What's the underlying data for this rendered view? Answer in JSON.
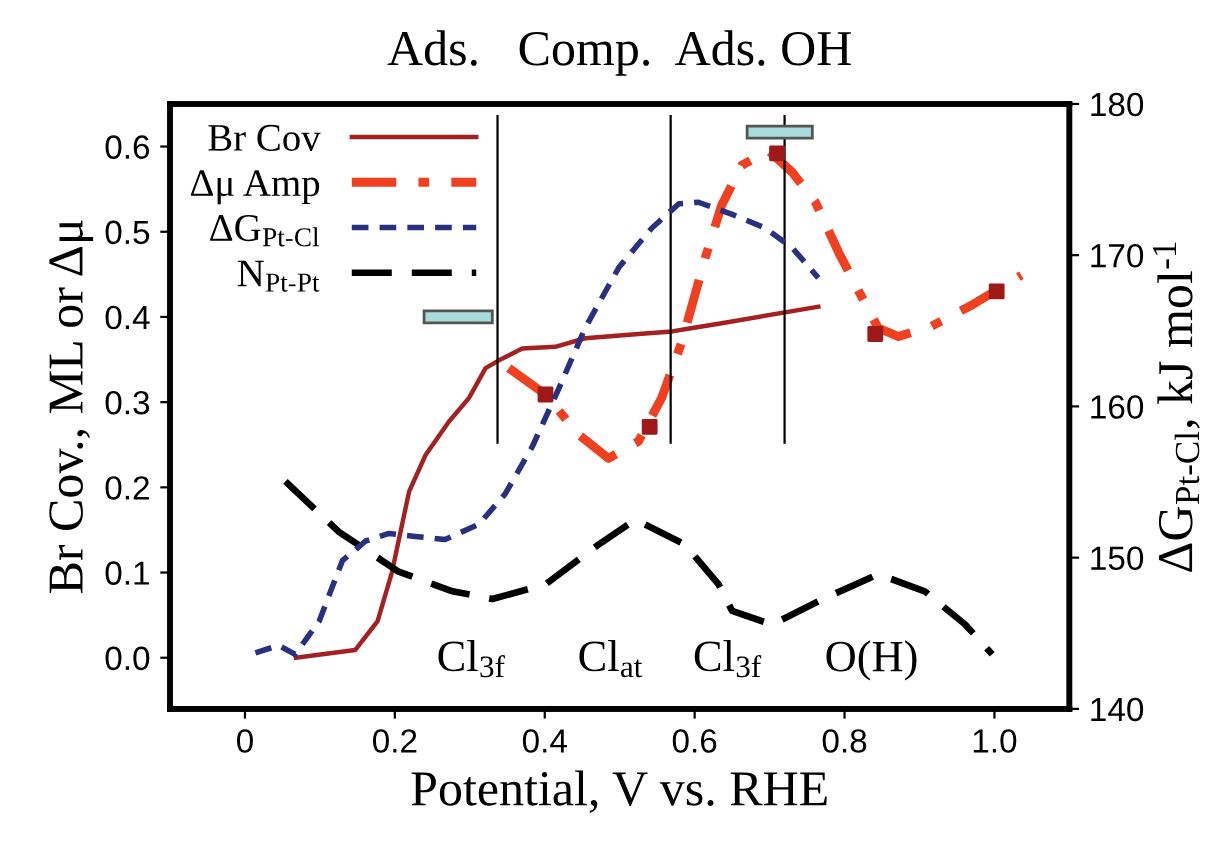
{
  "chart_data": {
    "type": "line",
    "title": "Ads.   Comp.  Ads. OH",
    "xlabel": "Potential, V vs. RHE",
    "ylabel": "Br Cov., ML or Δμ",
    "y2label": "ΔG$_{Pt-Cl}$, kJ mol$^{-1}$",
    "xlim": [
      -0.1,
      1.1
    ],
    "xticks": [
      0,
      0.2,
      0.4,
      0.6,
      0.8,
      {
        "value": 1,
        "label": "1.0"
      }
    ],
    "ylim": [
      -0.06,
      0.65
    ],
    "yticks": [
      {
        "value": 0,
        "label": "0.0"
      },
      0.1,
      0.2,
      0.3,
      0.4,
      0.5,
      0.6
    ],
    "y2lim": [
      140,
      180
    ],
    "y2ticks": [
      140,
      150,
      160,
      170,
      180
    ],
    "grid": false,
    "legend": "top left",
    "series": [
      {
        "name": "Br Cov",
        "line_style": "solid",
        "color": "#a52020",
        "x": [
          0.068,
          0.147,
          0.177,
          0.196,
          0.219,
          0.241,
          0.272,
          0.299,
          0.321,
          0.343,
          0.37,
          0.414,
          0.454,
          0.525,
          0.57,
          0.597,
          0.632,
          0.765
        ],
        "values": [
          0.0,
          0.009,
          0.043,
          0.1,
          0.195,
          0.238,
          0.277,
          0.305,
          0.34,
          0.351,
          0.363,
          0.365,
          0.375,
          0.38,
          0.383,
          0.387,
          0.392,
          0.412
        ]
      },
      {
        "name": "Δμ Amp",
        "line_style": "dashdot",
        "color": "#f04020",
        "x": [
          0.352,
          0.401,
          0.445,
          0.485,
          0.525,
          0.556,
          0.583,
          0.614,
          0.636,
          0.663,
          0.699,
          0.73,
          0.761,
          0.792,
          0.819,
          0.845,
          0.872,
          0.916,
          0.97,
          1.036
        ],
        "values": [
          0.34,
          0.309,
          0.262,
          0.234,
          0.254,
          0.305,
          0.371,
          0.469,
          0.531,
          0.578,
          0.595,
          0.57,
          0.535,
          0.476,
          0.43,
          0.387,
          0.377,
          0.389,
          0.414,
          0.449
        ]
      },
      {
        "name": "ΔG$_{Pt-Cl}$",
        "axis": "y2",
        "line_style": "dotted",
        "color": "#283080",
        "x": [
          0.014,
          0.045,
          0.067,
          0.099,
          0.13,
          0.161,
          0.192,
          0.227,
          0.267,
          0.312,
          0.347,
          0.383,
          0.419,
          0.454,
          0.499,
          0.543,
          0.579,
          0.605,
          0.65,
          0.694,
          0.73,
          0.765
        ],
        "values": [
          143.7,
          144.2,
          143.6,
          145.8,
          149.8,
          151.1,
          151.6,
          151.4,
          151.2,
          152.2,
          154.2,
          157.3,
          161.2,
          165.2,
          169.2,
          171.8,
          173.4,
          173.5,
          172.7,
          171.8,
          170.5,
          168.5
        ]
      },
      {
        "name": "N$_{Pt-Pt}$",
        "line_style": "dashed",
        "color": "#000000",
        "x": [
          0.054,
          0.125,
          0.205,
          0.277,
          0.33,
          0.401,
          0.472,
          0.521,
          0.587,
          0.632,
          0.65,
          0.703,
          0.774,
          0.845,
          0.907,
          0.961,
          0.997
        ],
        "values": [
          0.207,
          0.148,
          0.101,
          0.078,
          0.069,
          0.086,
          0.133,
          0.162,
          0.133,
          0.086,
          0.055,
          0.039,
          0.07,
          0.098,
          0.078,
          0.039,
          0.004
        ]
      },
      {
        "type": "scatter",
        "marker": "square",
        "color": "#a01818",
        "x": [
          0.401,
          0.54,
          0.71,
          0.841,
          1.003
        ],
        "values": [
          0.309,
          0.271,
          0.592,
          0.38,
          0.43
        ]
      }
    ],
    "ref_lines": [
      {
        "axis": "x",
        "value": 0.337,
        "color": "#000000"
      },
      {
        "axis": "x",
        "value": 0.568,
        "color": "#000000"
      },
      {
        "axis": "x",
        "value": 0.72,
        "color": "#000000"
      }
    ],
    "annotations": [
      "Cl$_{3f}$",
      "Cl$_{at}$",
      "Cl$_{3f}$",
      "O(H)"
    ]
  }
}
